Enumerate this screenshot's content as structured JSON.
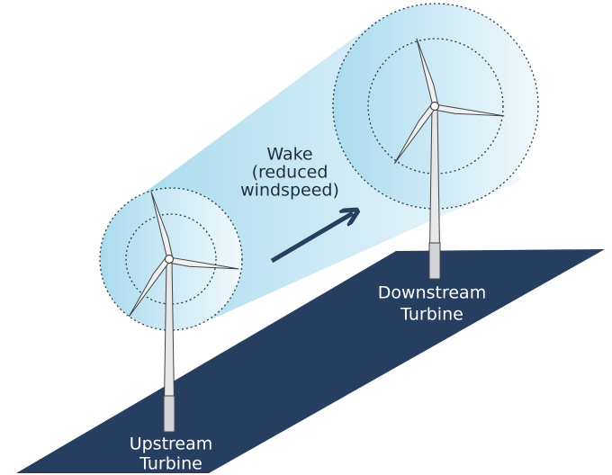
{
  "labels": {
    "wake": [
      "Wake",
      "(reduced",
      "windspeed)"
    ],
    "downstream": [
      "Downstream",
      "Turbine"
    ],
    "upstream": [
      "Upstream",
      "Turbine"
    ]
  }
}
